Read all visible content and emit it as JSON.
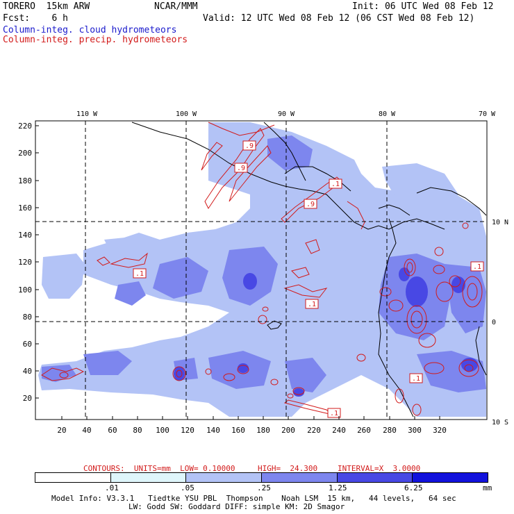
{
  "header": {
    "model": "TORERO  15km ARW",
    "org": "NCAR/MMM",
    "init": "Init: 06 UTC Wed 08 Feb 12",
    "fcst": "Fcst:    6 h",
    "valid": "Valid: 12 UTC Wed 08 Feb 12 (06 CST Wed 08 Feb 12)",
    "fill_field": "Column-integ. cloud hydrometeors",
    "contour_field": "Column-integ. precip. hydrometeors"
  },
  "axes": {
    "top_lon_labels": [
      "110 W",
      "100 W",
      "90 W",
      "80 W",
      "70 W"
    ],
    "right_lat_labels": [
      "10 N",
      "0",
      "10 S"
    ],
    "left_ticks": [
      "220",
      "200",
      "180",
      "160",
      "140",
      "120",
      "100",
      "80",
      "60",
      "40",
      "20"
    ],
    "bottom_ticks": [
      "20",
      "40",
      "60",
      "80",
      "100",
      "120",
      "140",
      "160",
      "180",
      "200",
      "220",
      "240",
      "260",
      "280",
      "300",
      "320"
    ]
  },
  "contour_labels": [
    ".9",
    ".9",
    ".1",
    ".9",
    ".1",
    ".1",
    ".1",
    ".1",
    ".1"
  ],
  "contour_info": {
    "contours": "CONTOURS:  UNITS=mm  LOW= 0.10000",
    "high": "HIGH=  24.300",
    "interval": "INTERVAL=X  3.0000"
  },
  "colorbar": {
    "labels": [
      ".01",
      ".05",
      ".25",
      "1.25",
      "6.25"
    ],
    "units": "mm",
    "colors": [
      "#ffffff",
      "#dff6fb",
      "#b3c3f6",
      "#7d86ee",
      "#4848e4",
      "#1212dc"
    ]
  },
  "footer": {
    "line1": "Model Info: V3.3.1   Tiedtke YSU PBL  Thompson    Noah LSM  15 km,   44 levels,   64 sec",
    "line2": "LW: Godd SW: Goddard DIFF: simple KM: 2D Smagor"
  }
}
